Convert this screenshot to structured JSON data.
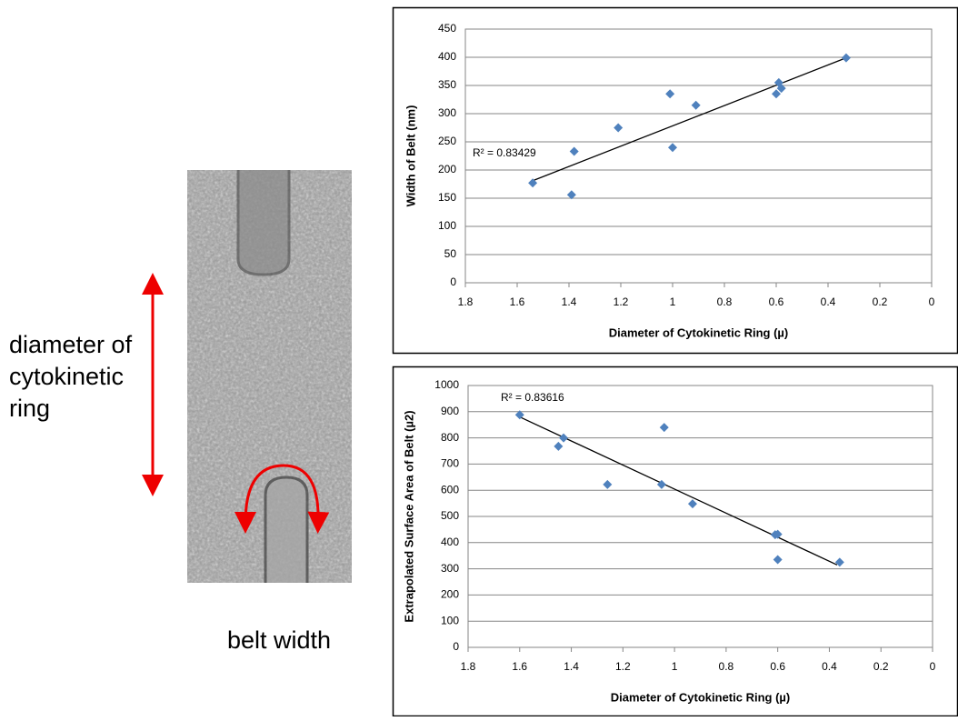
{
  "image_panel": {
    "ring_label": [
      "diameter of",
      "cytokinetic",
      "ring"
    ],
    "belt_label": "belt width"
  },
  "chart_data": [
    {
      "type": "scatter",
      "x_label": "Diameter of Cytokinetic Ring (µ)",
      "y_label": "Width of Belt (nm)",
      "annotation": "R² = 0.83429",
      "color": "#4f81bd",
      "grid": true,
      "x": [
        1.54,
        1.39,
        1.38,
        1.21,
        1.01,
        1.0,
        0.91,
        0.6,
        0.59,
        0.58,
        0.33
      ],
      "values": [
        177,
        156,
        233,
        275,
        335,
        240,
        315,
        335,
        355,
        345,
        399
      ],
      "trendline": {
        "x": [
          1.54,
          0.33
        ],
        "values": [
          181,
          399
        ]
      },
      "xlim": [
        1.8,
        0
      ],
      "xticks": [
        1.8,
        1.6,
        1.4,
        1.2,
        1,
        0.8,
        0.6,
        0.4,
        0.2,
        0
      ],
      "ylim": [
        0,
        450
      ],
      "yticks": [
        0,
        50,
        100,
        150,
        200,
        250,
        300,
        350,
        400,
        450
      ]
    },
    {
      "type": "scatter",
      "x_label": "Diameter of Cytokinetic Ring (µ)",
      "y_label": "Extrapolated Surface Area of Belt (µ2)",
      "annotation": "R² = 0.83616",
      "color": "#4f81bd",
      "grid": true,
      "x": [
        1.6,
        1.45,
        1.43,
        1.26,
        1.04,
        1.05,
        0.93,
        0.61,
        0.6,
        0.6,
        0.36
      ],
      "values": [
        888,
        768,
        800,
        622,
        840,
        622,
        548,
        430,
        432,
        335,
        325
      ],
      "trendline": {
        "x": [
          1.6,
          0.37
        ],
        "values": [
          880,
          315
        ]
      },
      "xlim": [
        1.8,
        0
      ],
      "xticks": [
        1.8,
        1.6,
        1.4,
        1.2,
        1,
        0.8,
        0.6,
        0.4,
        0.2,
        0
      ],
      "ylim": [
        0,
        1000
      ],
      "yticks": [
        0,
        100,
        200,
        300,
        400,
        500,
        600,
        700,
        800,
        900,
        1000
      ]
    }
  ]
}
